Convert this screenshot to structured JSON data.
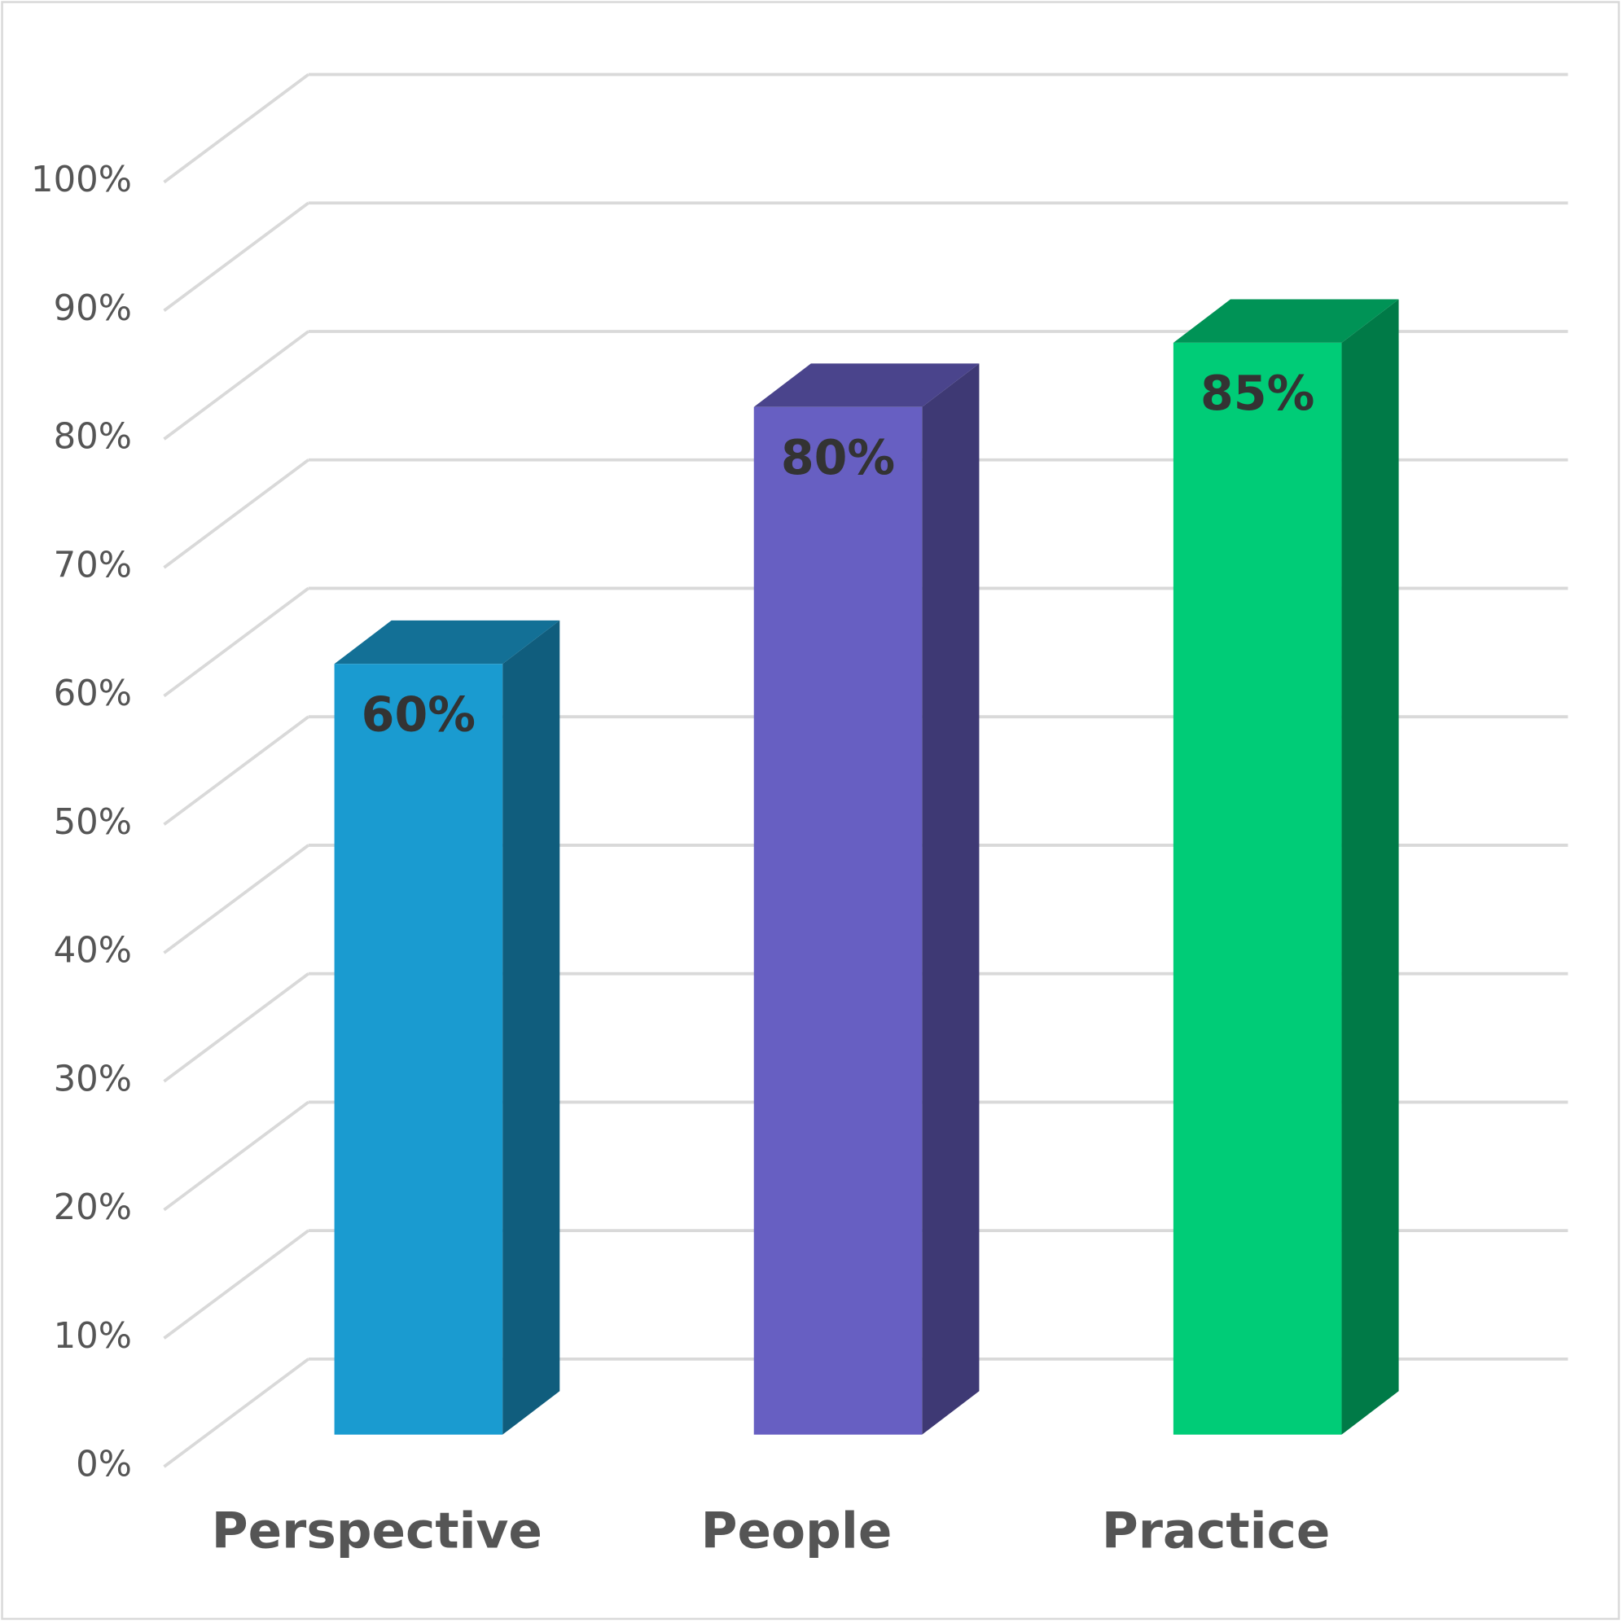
{
  "chart_data": {
    "type": "bar3d",
    "categories": [
      "Perspective",
      "People",
      "Practice"
    ],
    "values": [
      60,
      80,
      85
    ],
    "value_labels": [
      "60%",
      "80%",
      "85%"
    ],
    "colors": [
      "#1a9bd0",
      "#675fc2",
      "#00cc77"
    ],
    "ylim": [
      0,
      100
    ],
    "yticks": [
      {
        "value": 0,
        "label": "0%"
      },
      {
        "value": 10,
        "label": "10%"
      },
      {
        "value": 20,
        "label": "20%"
      },
      {
        "value": 30,
        "label": "30%"
      },
      {
        "value": 40,
        "label": "40%"
      },
      {
        "value": 50,
        "label": "50%"
      },
      {
        "value": 60,
        "label": "60%"
      },
      {
        "value": 70,
        "label": "70%"
      },
      {
        "value": 80,
        "label": "80%"
      },
      {
        "value": 90,
        "label": "90%"
      },
      {
        "value": 100,
        "label": "100%"
      }
    ],
    "grid": true
  }
}
